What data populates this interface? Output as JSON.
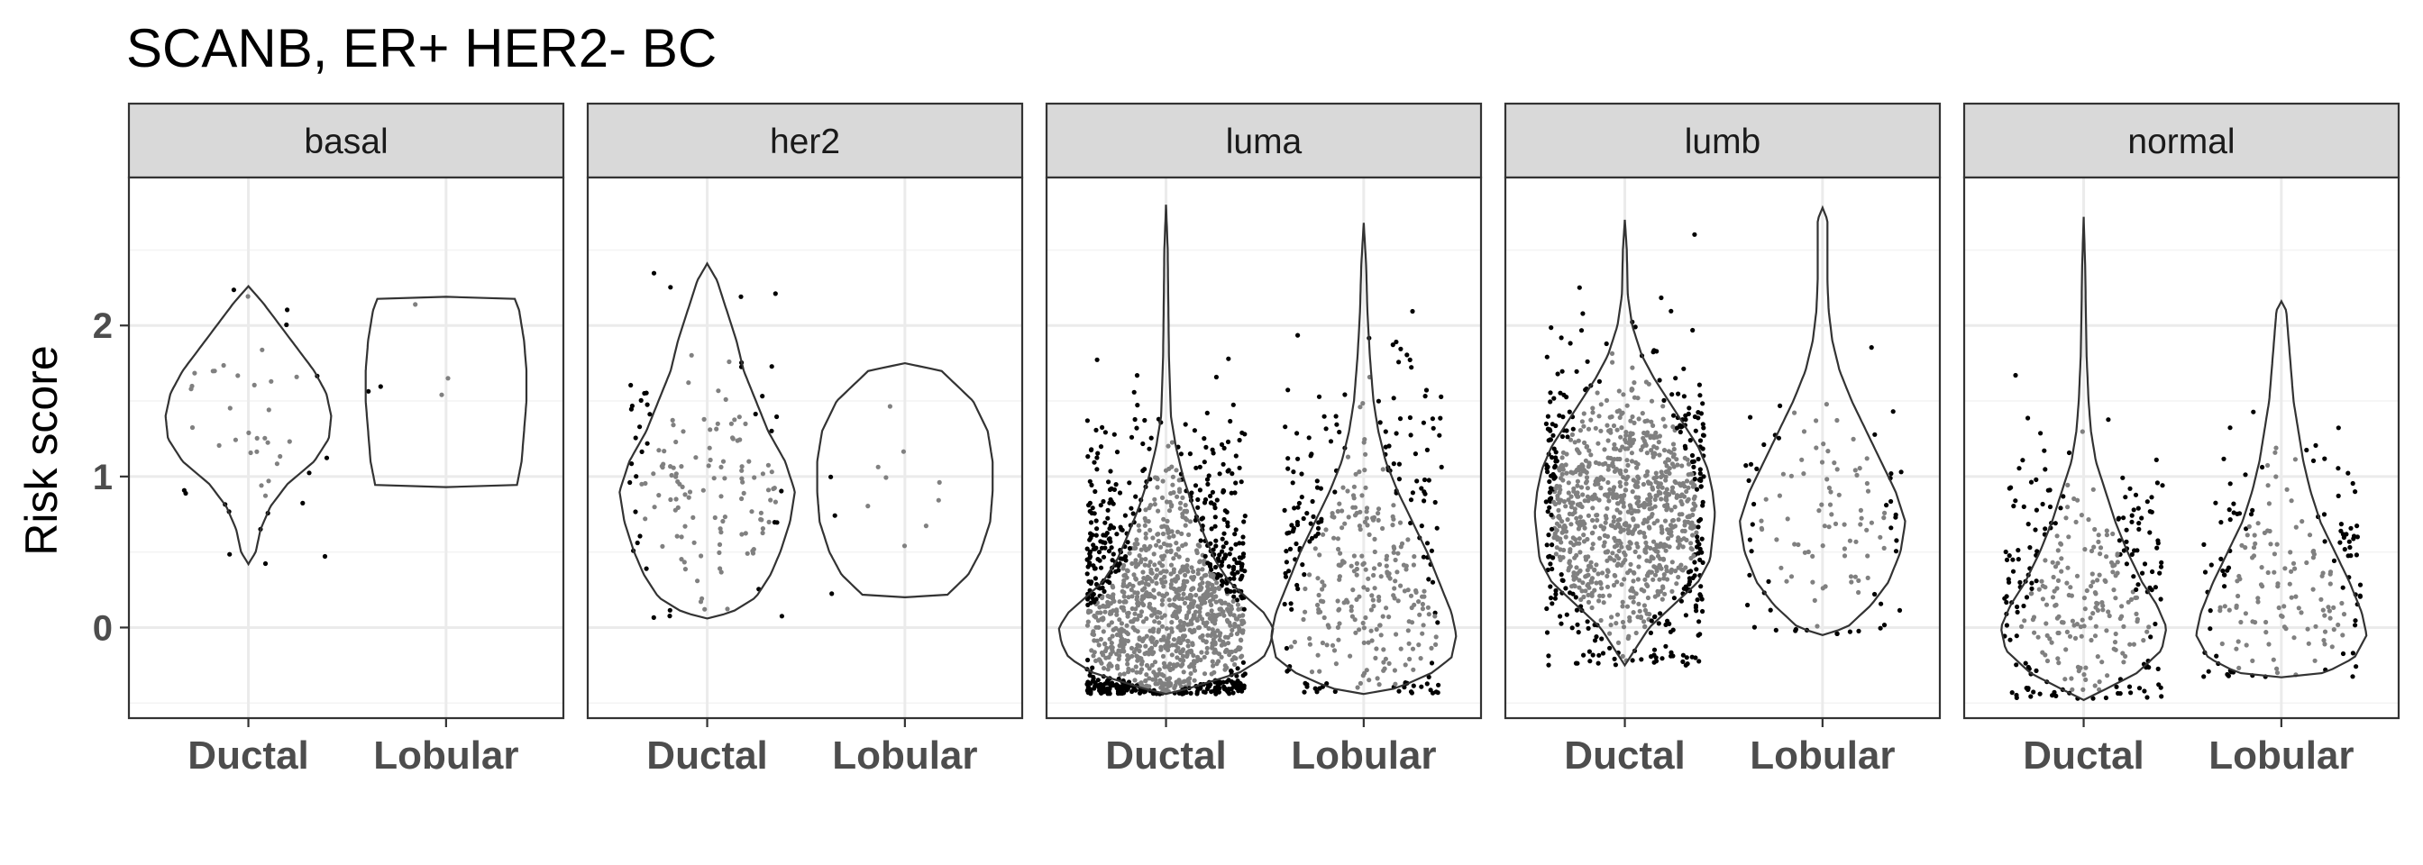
{
  "chart_data": {
    "type": "violin",
    "title": "SCANB, ER+ HER2- BC",
    "ylabel": "Risk score",
    "xlabel": "",
    "categories": [
      "Ductal",
      "Lobular"
    ],
    "y_ticks": [
      "0",
      "1",
      "2"
    ],
    "ylim": [
      -0.6,
      2.98
    ],
    "grid": true,
    "theme": "bw",
    "colors": {
      "point_outside": "#000000",
      "point_inside": "#808080",
      "violin_line": "#333333",
      "strip_fill": "#d9d9d9",
      "grid": "#ebebeb",
      "panel_border": "#333333"
    },
    "panels": [
      {
        "label": "basal",
        "groups": [
          {
            "category": "Ductal",
            "n": 45,
            "seed": 11,
            "dist": {
              "c": 1.35,
              "s": 0.42
            },
            "profile": [
              [
                0.42,
                0
              ],
              [
                0.5,
                0.03
              ],
              [
                0.65,
                0.05
              ],
              [
                0.8,
                0.09
              ],
              [
                0.95,
                0.16
              ],
              [
                1.1,
                0.27
              ],
              [
                1.25,
                0.33
              ],
              [
                1.4,
                0.34
              ],
              [
                1.55,
                0.32
              ],
              [
                1.7,
                0.27
              ],
              [
                1.85,
                0.2
              ],
              [
                2.0,
                0.13
              ],
              [
                2.15,
                0.06
              ],
              [
                2.26,
                0
              ]
            ]
          },
          {
            "category": "Lobular",
            "n": 5,
            "seed": 23,
            "dist": {
              "c": 1.5,
              "s": 0.45
            },
            "profile": [
              [
                0.93,
                0
              ],
              [
                0.935,
                0.29
              ],
              [
                1.1,
                0.31
              ],
              [
                1.3,
                0.32
              ],
              [
                1.5,
                0.33
              ],
              [
                1.7,
                0.33
              ],
              [
                1.9,
                0.32
              ],
              [
                2.1,
                0.3
              ],
              [
                2.185,
                0.28
              ],
              [
                2.19,
                0
              ]
            ]
          }
        ]
      },
      {
        "label": "her2",
        "groups": [
          {
            "category": "Ductal",
            "n": 150,
            "seed": 37,
            "dist": {
              "c": 0.95,
              "s": 0.45
            },
            "profile": [
              [
                0.06,
                0
              ],
              [
                0.1,
                0.1
              ],
              [
                0.2,
                0.2
              ],
              [
                0.35,
                0.26
              ],
              [
                0.5,
                0.3
              ],
              [
                0.7,
                0.34
              ],
              [
                0.9,
                0.36
              ],
              [
                1.1,
                0.32
              ],
              [
                1.3,
                0.25
              ],
              [
                1.5,
                0.2
              ],
              [
                1.7,
                0.15
              ],
              [
                1.9,
                0.12
              ],
              [
                2.1,
                0.08
              ],
              [
                2.3,
                0.04
              ],
              [
                2.41,
                0
              ]
            ]
          },
          {
            "category": "Lobular",
            "n": 12,
            "seed": 41,
            "dist": {
              "c": 0.9,
              "s": 0.4
            },
            "profile": [
              [
                0.2,
                0
              ],
              [
                0.21,
                0.17
              ],
              [
                0.35,
                0.26
              ],
              [
                0.5,
                0.31
              ],
              [
                0.7,
                0.35
              ],
              [
                0.9,
                0.36
              ],
              [
                1.1,
                0.36
              ],
              [
                1.3,
                0.34
              ],
              [
                1.5,
                0.28
              ],
              [
                1.7,
                0.15
              ],
              [
                1.75,
                0
              ]
            ]
          }
        ]
      },
      {
        "label": "luma",
        "groups": [
          {
            "category": "Ductal",
            "n": 1400,
            "seed": 53,
            "dist": {
              "c": 0.15,
              "s": 0.5
            },
            "profile": [
              [
                -0.44,
                0
              ],
              [
                -0.4,
                0.1
              ],
              [
                -0.3,
                0.3
              ],
              [
                -0.2,
                0.4
              ],
              [
                -0.1,
                0.43
              ],
              [
                0.0,
                0.44
              ],
              [
                0.1,
                0.4
              ],
              [
                0.2,
                0.33
              ],
              [
                0.3,
                0.26
              ],
              [
                0.45,
                0.2
              ],
              [
                0.6,
                0.16
              ],
              [
                0.8,
                0.11
              ],
              [
                1.0,
                0.07
              ],
              [
                1.2,
                0.04
              ],
              [
                1.4,
                0.02
              ],
              [
                1.8,
                0.012
              ],
              [
                2.2,
                0.009
              ],
              [
                2.5,
                0.007
              ],
              [
                2.8,
                0
              ]
            ]
          },
          {
            "category": "Lobular",
            "n": 400,
            "seed": 59,
            "dist": {
              "c": 0.45,
              "s": 0.55
            },
            "profile": [
              [
                -0.44,
                0
              ],
              [
                -0.4,
                0.14
              ],
              [
                -0.3,
                0.28
              ],
              [
                -0.2,
                0.36
              ],
              [
                -0.05,
                0.38
              ],
              [
                0.1,
                0.36
              ],
              [
                0.3,
                0.31
              ],
              [
                0.5,
                0.26
              ],
              [
                0.7,
                0.2
              ],
              [
                0.9,
                0.14
              ],
              [
                1.1,
                0.09
              ],
              [
                1.3,
                0.06
              ],
              [
                1.5,
                0.04
              ],
              [
                1.8,
                0.025
              ],
              [
                2.1,
                0.015
              ],
              [
                2.4,
                0.01
              ],
              [
                2.68,
                0
              ]
            ]
          }
        ]
      },
      {
        "label": "lumb",
        "groups": [
          {
            "category": "Ductal",
            "n": 1100,
            "seed": 67,
            "dist": {
              "c": 0.75,
              "s": 0.45
            },
            "profile": [
              [
                -0.25,
                0
              ],
              [
                -0.15,
                0.04
              ],
              [
                0.0,
                0.1
              ],
              [
                0.15,
                0.2
              ],
              [
                0.3,
                0.3
              ],
              [
                0.45,
                0.35
              ],
              [
                0.6,
                0.36
              ],
              [
                0.75,
                0.37
              ],
              [
                0.9,
                0.36
              ],
              [
                1.05,
                0.34
              ],
              [
                1.2,
                0.3
              ],
              [
                1.35,
                0.24
              ],
              [
                1.5,
                0.18
              ],
              [
                1.65,
                0.12
              ],
              [
                1.8,
                0.07
              ],
              [
                2.0,
                0.03
              ],
              [
                2.2,
                0.012
              ],
              [
                2.5,
                0.008
              ],
              [
                2.7,
                0
              ]
            ]
          },
          {
            "category": "Lobular",
            "n": 120,
            "seed": 71,
            "dist": {
              "c": 0.7,
              "s": 0.45
            },
            "profile": [
              [
                -0.05,
                0
              ],
              [
                0.0,
                0.1
              ],
              [
                0.15,
                0.2
              ],
              [
                0.3,
                0.27
              ],
              [
                0.5,
                0.32
              ],
              [
                0.7,
                0.34
              ],
              [
                0.9,
                0.3
              ],
              [
                1.1,
                0.24
              ],
              [
                1.3,
                0.18
              ],
              [
                1.5,
                0.12
              ],
              [
                1.7,
                0.07
              ],
              [
                1.9,
                0.04
              ],
              [
                2.1,
                0.025
              ],
              [
                2.3,
                0.02
              ],
              [
                2.5,
                0.02
              ],
              [
                2.7,
                0.02
              ],
              [
                2.78,
                0
              ]
            ]
          }
        ]
      },
      {
        "label": "normal",
        "groups": [
          {
            "category": "Ductal",
            "n": 320,
            "seed": 83,
            "dist": {
              "c": 0.25,
              "s": 0.45
            },
            "profile": [
              [
                -0.48,
                0
              ],
              [
                -0.4,
                0.1
              ],
              [
                -0.3,
                0.22
              ],
              [
                -0.15,
                0.32
              ],
              [
                0.0,
                0.34
              ],
              [
                0.15,
                0.3
              ],
              [
                0.3,
                0.24
              ],
              [
                0.5,
                0.18
              ],
              [
                0.7,
                0.13
              ],
              [
                0.9,
                0.09
              ],
              [
                1.1,
                0.05
              ],
              [
                1.3,
                0.03
              ],
              [
                1.5,
                0.02
              ],
              [
                1.8,
                0.012
              ],
              [
                2.1,
                0.009
              ],
              [
                2.4,
                0.006
              ],
              [
                2.72,
                0
              ]
            ]
          },
          {
            "category": "Lobular",
            "n": 200,
            "seed": 97,
            "dist": {
              "c": 0.35,
              "s": 0.45
            },
            "profile": [
              [
                -0.33,
                0
              ],
              [
                -0.3,
                0.18
              ],
              [
                -0.2,
                0.3
              ],
              [
                -0.05,
                0.35
              ],
              [
                0.1,
                0.33
              ],
              [
                0.3,
                0.28
              ],
              [
                0.5,
                0.22
              ],
              [
                0.7,
                0.16
              ],
              [
                0.9,
                0.12
              ],
              [
                1.1,
                0.09
              ],
              [
                1.3,
                0.07
              ],
              [
                1.5,
                0.05
              ],
              [
                1.7,
                0.04
              ],
              [
                1.9,
                0.03
              ],
              [
                2.1,
                0.02
              ],
              [
                2.16,
                0
              ]
            ]
          }
        ]
      }
    ]
  }
}
